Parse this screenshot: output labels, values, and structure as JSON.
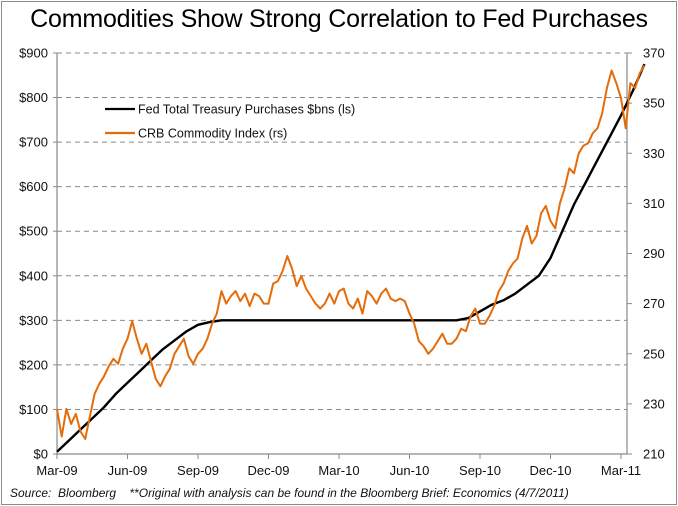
{
  "chart_data": {
    "type": "line",
    "title": "Commodities Show Strong Correlation to Fed Purchases",
    "source": "Source:  Bloomberg    **Original with analysis can be found in the Bloomberg Brief: Economics (4/7/2011)",
    "x_tick_labels": [
      "Mar-09",
      "Jun-09",
      "Sep-09",
      "Dec-09",
      "Mar-10",
      "Jun-10",
      "Sep-10",
      "Dec-10",
      "Mar-11"
    ],
    "x_range_months": [
      0,
      25
    ],
    "left_axis": {
      "label": "Fed Total Treasury Purchases $bns",
      "ylim": [
        0,
        900
      ],
      "ticks": [
        0,
        100,
        200,
        300,
        400,
        500,
        600,
        700,
        800,
        900
      ],
      "tick_labels": [
        "$0",
        "$100",
        "$200",
        "$300",
        "$400",
        "$500",
        "$600",
        "$700",
        "$800",
        "$900"
      ]
    },
    "right_axis": {
      "label": "CRB Commodity Index",
      "ylim": [
        210,
        370
      ],
      "ticks": [
        210,
        230,
        250,
        270,
        290,
        310,
        330,
        350,
        370
      ],
      "tick_labels": [
        "210",
        "230",
        "250",
        "270",
        "290",
        "310",
        "330",
        "350",
        "370"
      ]
    },
    "grid": "horizontal-dashed",
    "legend_position": "top-left",
    "series": [
      {
        "name": "Fed Total Treasury Purchases $bns (ls)",
        "axis": "left",
        "color": "#000000",
        "x_months": [
          0,
          0.5,
          1,
          1.5,
          2,
          2.5,
          3,
          3.5,
          4,
          4.5,
          5,
          5.5,
          6,
          6.5,
          7,
          8,
          9,
          10,
          11,
          12,
          13,
          14,
          15,
          16,
          17,
          17.5,
          18,
          18.5,
          19,
          19.5,
          20,
          20.5,
          21,
          21.5,
          22,
          22.5,
          23,
          23.5,
          24,
          24.5,
          25
        ],
        "values": [
          5,
          30,
          55,
          80,
          105,
          135,
          160,
          185,
          210,
          235,
          255,
          275,
          290,
          296,
          300,
          300,
          300,
          300,
          300,
          300,
          300,
          300,
          300,
          300,
          300,
          305,
          320,
          335,
          345,
          360,
          380,
          400,
          440,
          500,
          560,
          610,
          660,
          710,
          760,
          815,
          875
        ]
      },
      {
        "name": "CRB Commodity Index (rs)",
        "axis": "right",
        "color": "#E46C0A",
        "x_months": [
          0,
          0.2,
          0.4,
          0.6,
          0.8,
          1,
          1.2,
          1.4,
          1.6,
          1.8,
          2,
          2.2,
          2.4,
          2.6,
          2.8,
          3,
          3.2,
          3.4,
          3.6,
          3.8,
          4,
          4.2,
          4.4,
          4.6,
          4.8,
          5,
          5.2,
          5.4,
          5.6,
          5.8,
          6,
          6.2,
          6.4,
          6.6,
          6.8,
          7,
          7.2,
          7.4,
          7.6,
          7.8,
          8,
          8.2,
          8.4,
          8.6,
          8.8,
          9,
          9.2,
          9.4,
          9.6,
          9.8,
          10,
          10.2,
          10.4,
          10.6,
          10.8,
          11,
          11.2,
          11.4,
          11.6,
          11.8,
          12,
          12.2,
          12.4,
          12.6,
          12.8,
          13,
          13.2,
          13.4,
          13.6,
          13.8,
          14,
          14.2,
          14.4,
          14.6,
          14.8,
          15,
          15.2,
          15.4,
          15.6,
          15.8,
          16,
          16.2,
          16.4,
          16.6,
          16.8,
          17,
          17.2,
          17.4,
          17.6,
          17.8,
          18,
          18.2,
          18.4,
          18.6,
          18.8,
          19,
          19.2,
          19.4,
          19.6,
          19.8,
          20,
          20.2,
          20.4,
          20.6,
          20.8,
          21,
          21.2,
          21.4,
          21.6,
          21.8,
          22,
          22.2,
          22.4,
          22.6,
          22.8,
          23,
          23.2,
          23.4,
          23.6,
          23.8,
          24,
          24.2,
          24.4,
          24.6,
          24.8,
          25
        ],
        "values": [
          228,
          217,
          228,
          222,
          226,
          219,
          216,
          225,
          234,
          238,
          241,
          245,
          248,
          246,
          252,
          256,
          263,
          256,
          250,
          254,
          247,
          240,
          237,
          241,
          244,
          250,
          253,
          256,
          249,
          246,
          250,
          252,
          256,
          262,
          266,
          275,
          270,
          273,
          275,
          271,
          274,
          269,
          274,
          273,
          270,
          270,
          278,
          279,
          283,
          289,
          284,
          277,
          281,
          276,
          273,
          270,
          268,
          270,
          274,
          270,
          275,
          276,
          270,
          268,
          272,
          266,
          275,
          273,
          270,
          274,
          276,
          272,
          271,
          272,
          271,
          266,
          262,
          255,
          253,
          250,
          252,
          255,
          258,
          254,
          254,
          256,
          260,
          259,
          265,
          268,
          262,
          262,
          265,
          269,
          275,
          278,
          283,
          286,
          288,
          296,
          301,
          294,
          297,
          306,
          309,
          303,
          300,
          310,
          316,
          324,
          322,
          330,
          333,
          334,
          338,
          340,
          346,
          356,
          363,
          358,
          352,
          340,
          358,
          356,
          362,
          365
        ]
      }
    ]
  }
}
